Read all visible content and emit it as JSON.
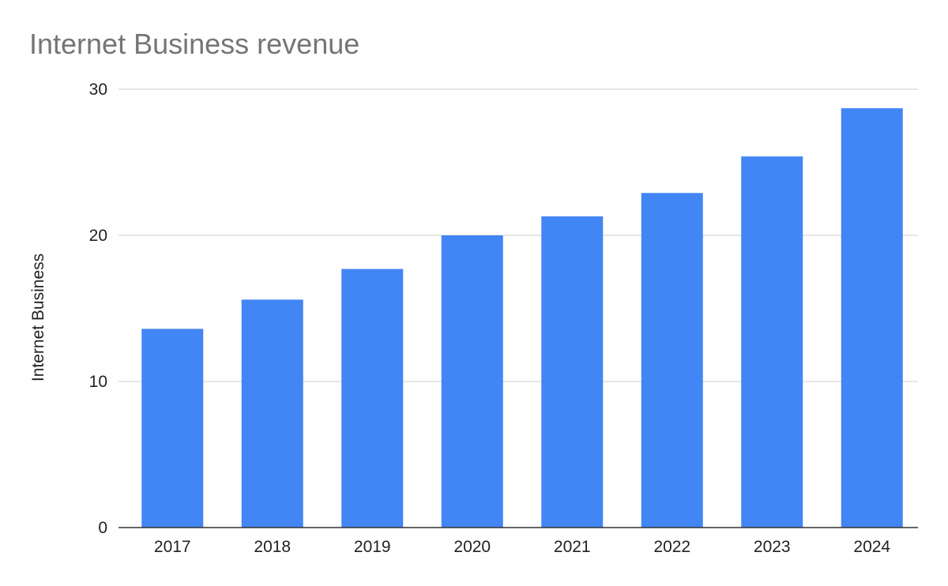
{
  "chart_data": {
    "type": "bar",
    "title": "Internet Business revenue",
    "xlabel": "",
    "ylabel": "Internet Business",
    "categories": [
      "2017",
      "2018",
      "2019",
      "2020",
      "2021",
      "2022",
      "2023",
      "2024"
    ],
    "values": [
      13.6,
      15.6,
      17.7,
      20.0,
      21.3,
      22.9,
      25.4,
      28.7
    ],
    "ylim": [
      0,
      30
    ],
    "yticks": [
      0,
      10,
      20,
      30
    ],
    "ytick_labels": [
      "0",
      "10",
      "20",
      "30"
    ],
    "grid": true,
    "legend": "none",
    "bar_color": "#4285f4"
  }
}
